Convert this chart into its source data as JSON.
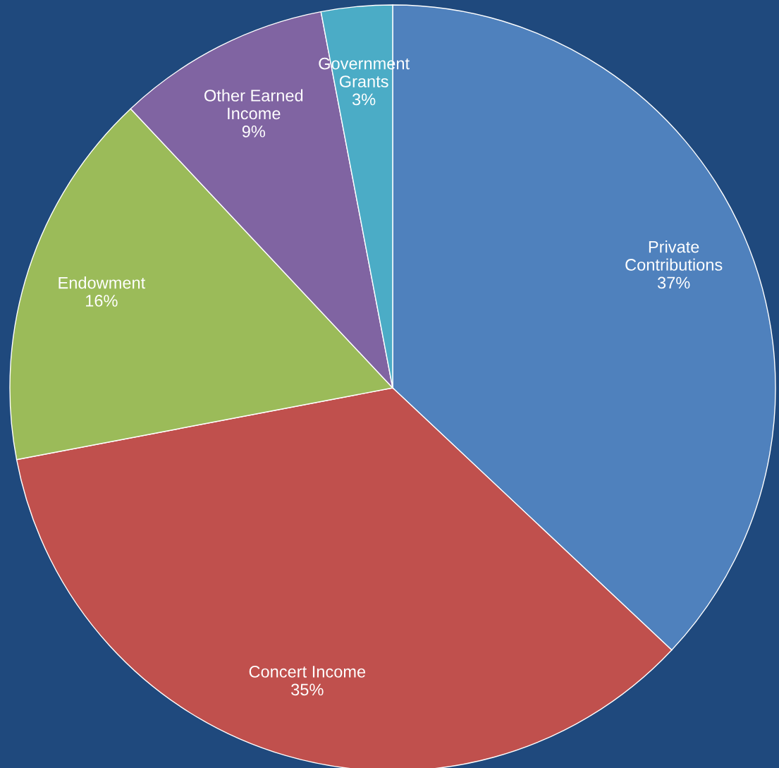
{
  "chart_data": {
    "type": "pie",
    "categories": [
      "Private\nContributions",
      "Concert Income",
      "Endowment",
      "Other Earned\nIncome",
      "Government\nGrants"
    ],
    "values": [
      37,
      35,
      16,
      9,
      3
    ],
    "value_labels": [
      "37%",
      "35%",
      "16%",
      "9%",
      "3%"
    ],
    "colors": [
      "#4f81bd",
      "#c0504d",
      "#9bbb59",
      "#8064a2",
      "#4bacc6"
    ],
    "legend": false
  }
}
